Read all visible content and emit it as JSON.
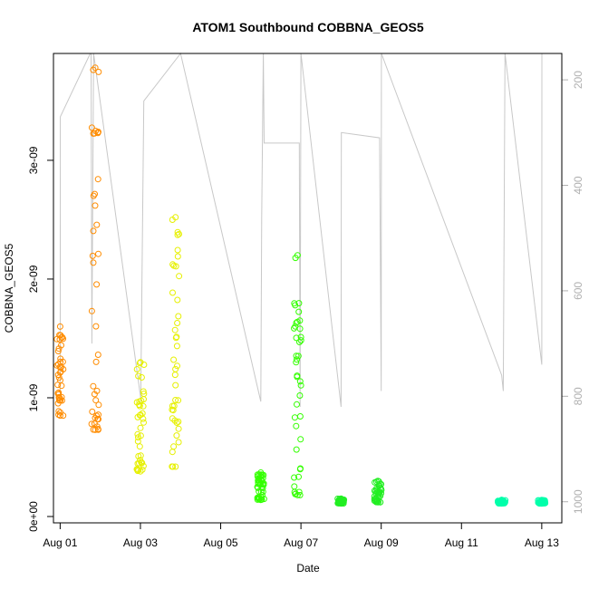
{
  "chart_data": {
    "type": "scatter",
    "title": "ATOM1 Southbound COBBNA_GEOS5",
    "xlabel": "Date",
    "ylabel": "COBBNA_GEOS5",
    "x_range": [
      "2016-07-31T20:00",
      "2016-08-13T12:00"
    ],
    "ylim": [
      0,
      3.9e-09
    ],
    "y_ticks": [
      0,
      1e-09,
      2e-09,
      3e-09
    ],
    "y_tick_labels": [
      "0e+00",
      "1e-09",
      "2e-09",
      "3e-09"
    ],
    "x_ticks": [
      "2016-08-01",
      "2016-08-03",
      "2016-08-05",
      "2016-08-07",
      "2016-08-09",
      "2016-08-11",
      "2016-08-13"
    ],
    "x_tick_labels": [
      "Aug 01",
      "Aug 03",
      "Aug 05",
      "Aug 07",
      "Aug 09",
      "Aug 11",
      "Aug 13"
    ],
    "y2_ticks": [
      200,
      400,
      600,
      800,
      1000
    ],
    "y2_range_inverted": [
      1040,
      150
    ],
    "grid": false,
    "marker": "open-circle",
    "series": [
      {
        "color": "#FF8C00",
        "clusters": [
          {
            "x": "2016-08-01T00:00",
            "y_min": 8.5e-10,
            "y_max": 1.6e-09
          },
          {
            "x": "2016-08-01T21:00",
            "y_min": 7.3e-10,
            "y_max": 3.78e-09
          }
        ]
      },
      {
        "color": "#E6F000",
        "clusters": [
          {
            "x": "2016-08-03T00:00",
            "y_min": 3.8e-10,
            "y_max": 1.3e-09
          },
          {
            "x": "2016-08-03T21:00",
            "y_min": 4.2e-10,
            "y_max": 2.52e-09
          }
        ]
      },
      {
        "color": "#33FF00",
        "clusters": [
          {
            "x": "2016-08-06T00:00",
            "y_min": 1.4e-10,
            "y_max": 3.7e-10
          },
          {
            "x": "2016-08-06T22:00",
            "y_min": 1.8e-10,
            "y_max": 2.2e-09
          }
        ]
      },
      {
        "color": "#22EE22",
        "clusters": [
          {
            "x": "2016-08-08T00:00",
            "y_min": 1.1e-10,
            "y_max": 1.5e-10
          },
          {
            "x": "2016-08-08T22:00",
            "y_min": 1.2e-10,
            "y_max": 3e-10
          }
        ]
      },
      {
        "color": "#00FFAA",
        "clusters": [
          {
            "x": "2016-08-12T00:00",
            "y_min": 1.1e-10,
            "y_max": 1.4e-10
          },
          {
            "x": "2016-08-13T00:00",
            "y_min": 1.1e-10,
            "y_max": 1.4e-10
          }
        ]
      }
    ],
    "altitude_trace": {
      "color": "#c8c8c8",
      "axis": "y2",
      "points": [
        [
          "2016-08-01T00:00",
          800
        ],
        [
          "2016-08-01T00:06",
          270
        ],
        [
          "2016-08-01T18:00",
          90
        ],
        [
          "2016-08-01T18:30",
          90
        ],
        [
          "2016-08-01T19:00",
          700
        ],
        [
          "2016-08-01T20:00",
          90
        ],
        [
          "2016-08-03T00:00",
          800
        ],
        [
          "2016-08-03T00:10",
          810
        ],
        [
          "2016-08-03T02:00",
          240
        ],
        [
          "2016-08-04T00:00",
          90
        ],
        [
          "2016-08-06T00:00",
          810
        ],
        [
          "2016-08-06T00:30",
          460
        ],
        [
          "2016-08-06T01:30",
          80
        ],
        [
          "2016-08-06T02:00",
          320
        ],
        [
          "2016-08-06T23:00",
          320
        ],
        [
          "2016-08-06T23:30",
          820
        ],
        [
          "2016-08-07T00:00",
          90
        ],
        [
          "2016-08-08T00:00",
          820
        ],
        [
          "2016-08-08T00:10",
          300
        ],
        [
          "2016-08-08T23:00",
          310
        ],
        [
          "2016-08-09T00:00",
          790
        ],
        [
          "2016-08-09T00:05",
          90
        ],
        [
          "2016-08-12T00:00",
          760
        ],
        [
          "2016-08-12T01:00",
          790
        ],
        [
          "2016-08-12T02:00",
          90
        ],
        [
          "2016-08-13T00:00",
          740
        ],
        [
          "2016-08-13T00:05",
          90
        ]
      ]
    }
  }
}
